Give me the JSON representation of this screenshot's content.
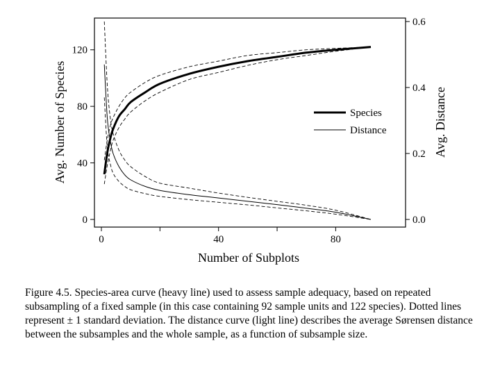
{
  "chart_data": {
    "type": "line",
    "xlabel": "Number of Subplots",
    "ylabel_left": "Avg. Number of Species",
    "ylabel_right": "Avg. Distance",
    "xlim": [
      0,
      92
    ],
    "ylim_left": [
      0,
      140
    ],
    "ylim_right": [
      0,
      0.6
    ],
    "xticks": [
      0,
      40,
      80
    ],
    "xticks_minor": [
      20,
      60
    ],
    "yticks_left": [
      0,
      40,
      80,
      120
    ],
    "yticks_right": [
      0.0,
      0.2,
      0.4,
      0.6
    ],
    "ytick_labels_right": [
      "0.0",
      "0.2",
      "0.4",
      "0.6"
    ],
    "grid": false,
    "legend_position": "center-right",
    "legend": [
      {
        "label": "Species",
        "style": "heavy"
      },
      {
        "label": "Distance",
        "style": "light"
      }
    ],
    "series": [
      {
        "name": "Species",
        "axis": "left",
        "x": [
          1,
          2,
          3,
          4,
          6,
          8,
          10,
          15,
          20,
          30,
          40,
          50,
          60,
          70,
          80,
          92
        ],
        "y": [
          32,
          47,
          57,
          64,
          73,
          78,
          83,
          90,
          96,
          103,
          108,
          112,
          115,
          118,
          120,
          122
        ],
        "y_lower": [
          25,
          38,
          48,
          56,
          65,
          71,
          76,
          84,
          90,
          99,
          104,
          109,
          113,
          116,
          119,
          122
        ],
        "y_upper": [
          42,
          56,
          66,
          72,
          80,
          86,
          90,
          97,
          102,
          108,
          112,
          116,
          118,
          120,
          121,
          122
        ]
      },
      {
        "name": "Distance",
        "axis": "right",
        "x": [
          1,
          2,
          3,
          4,
          6,
          8,
          10,
          15,
          20,
          30,
          40,
          50,
          60,
          70,
          80,
          92
        ],
        "y": [
          0.47,
          0.31,
          0.24,
          0.2,
          0.16,
          0.135,
          0.12,
          0.1,
          0.088,
          0.075,
          0.065,
          0.055,
          0.045,
          0.034,
          0.022,
          0.0
        ],
        "y_lower": [
          0.37,
          0.22,
          0.17,
          0.14,
          0.115,
          0.1,
          0.09,
          0.078,
          0.07,
          0.06,
          0.052,
          0.044,
          0.035,
          0.026,
          0.016,
          0.0
        ],
        "y_upper": [
          0.6,
          0.41,
          0.31,
          0.26,
          0.21,
          0.18,
          0.16,
          0.13,
          0.11,
          0.095,
          0.08,
          0.067,
          0.055,
          0.043,
          0.028,
          0.0
        ]
      }
    ]
  },
  "caption": "Figure 4.5.  Species-area curve (heavy line) used to assess sample adequacy, based on repeated subsampling of a fixed sample (in this case containing 92 sample units and 122 species).  Dotted lines represent ± 1 standard deviation.  The distance curve (light line) describes the average Sørensen distance between the subsamples and the whole sample, as a function of subsample size."
}
